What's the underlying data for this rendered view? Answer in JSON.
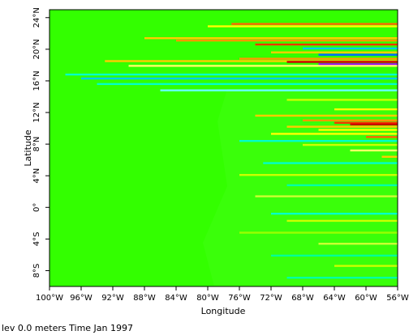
{
  "chart_data": {
    "type": "heatmap",
    "xlabel": "Longitude",
    "ylabel": "Latitude",
    "xlim": [
      -100,
      -56
    ],
    "ylim": [
      -10,
      25
    ],
    "x_ticks": [
      {
        "value": -100,
        "label": "100°W"
      },
      {
        "value": -96,
        "label": "96°W"
      },
      {
        "value": -92,
        "label": "92°W"
      },
      {
        "value": -88,
        "label": "88°W"
      },
      {
        "value": -84,
        "label": "84°W"
      },
      {
        "value": -80,
        "label": "80°W"
      },
      {
        "value": -76,
        "label": "76°W"
      },
      {
        "value": -72,
        "label": "72°W"
      },
      {
        "value": -68,
        "label": "68°W"
      },
      {
        "value": -64,
        "label": "64°W"
      },
      {
        "value": -60,
        "label": "60°W"
      },
      {
        "value": -56,
        "label": "56°W"
      }
    ],
    "y_ticks": [
      {
        "value": -8,
        "label": "8°S"
      },
      {
        "value": -4,
        "label": "4°S"
      },
      {
        "value": 0,
        "label": "0°"
      },
      {
        "value": 4,
        "label": "4°N"
      },
      {
        "value": 8,
        "label": "8°N"
      },
      {
        "value": 12,
        "label": "12°N"
      },
      {
        "value": 16,
        "label": "16°N"
      },
      {
        "value": 20,
        "label": "20°N"
      },
      {
        "value": 24,
        "label": "24°N"
      }
    ],
    "background_color": "#33ff00",
    "streaks": [
      {
        "lat": 23.2,
        "lon_start": -77,
        "color": "#ff6600"
      },
      {
        "lat": 22.9,
        "lon_start": -80,
        "color": "#ffff00"
      },
      {
        "lat": 21.4,
        "lon_start": -88,
        "color": "#ffcc00"
      },
      {
        "lat": 21.1,
        "lon_start": -84,
        "color": "#ff9900"
      },
      {
        "lat": 20.6,
        "lon_start": -74,
        "color": "#ff3300"
      },
      {
        "lat": 20.1,
        "lon_start": -68,
        "color": "#00ccff"
      },
      {
        "lat": 19.6,
        "lon_start": -72,
        "color": "#ffcc00"
      },
      {
        "lat": 19.3,
        "lon_start": -66,
        "color": "#0066ff"
      },
      {
        "lat": 18.8,
        "lon_start": -76,
        "color": "#ff9900"
      },
      {
        "lat": 18.5,
        "lon_start": -93,
        "color": "#ffcc00"
      },
      {
        "lat": 18.4,
        "lon_start": -70,
        "color": "#cc0000"
      },
      {
        "lat": 18.1,
        "lon_start": -66,
        "color": "#9900ff"
      },
      {
        "lat": 17.9,
        "lon_start": -90,
        "color": "#ffff66"
      },
      {
        "lat": 16.8,
        "lon_start": -98,
        "color": "#00ffcc"
      },
      {
        "lat": 16.3,
        "lon_start": -96,
        "color": "#00ccff"
      },
      {
        "lat": 15.6,
        "lon_start": -94,
        "color": "#00ffcc"
      },
      {
        "lat": 14.8,
        "lon_start": -86,
        "color": "#66ffff"
      },
      {
        "lat": 13.6,
        "lon_start": -70,
        "color": "#ccff00"
      },
      {
        "lat": 12.4,
        "lon_start": -64,
        "color": "#ffff00"
      },
      {
        "lat": 11.6,
        "lon_start": -74,
        "color": "#ffcc00"
      },
      {
        "lat": 11.0,
        "lon_start": -68,
        "color": "#ff9900"
      },
      {
        "lat": 10.7,
        "lon_start": -64,
        "color": "#ff3300"
      },
      {
        "lat": 10.5,
        "lon_start": -62,
        "color": "#cc0000"
      },
      {
        "lat": 10.2,
        "lon_start": -70,
        "color": "#ffcc00"
      },
      {
        "lat": 9.8,
        "lon_start": -66,
        "color": "#ffff00"
      },
      {
        "lat": 9.3,
        "lon_start": -72,
        "color": "#ffff00"
      },
      {
        "lat": 8.9,
        "lon_start": -60,
        "color": "#ff6600"
      },
      {
        "lat": 8.4,
        "lon_start": -76,
        "color": "#00ffcc"
      },
      {
        "lat": 7.9,
        "lon_start": -68,
        "color": "#ccff00"
      },
      {
        "lat": 7.2,
        "lon_start": -62,
        "color": "#ffff66"
      },
      {
        "lat": 6.4,
        "lon_start": -58,
        "color": "#ffcc00"
      },
      {
        "lat": 5.6,
        "lon_start": -73,
        "color": "#00ffcc"
      },
      {
        "lat": 4.1,
        "lon_start": -76,
        "color": "#ccff00"
      },
      {
        "lat": 2.8,
        "lon_start": -70,
        "color": "#00ffaa"
      },
      {
        "lat": 1.4,
        "lon_start": -74,
        "color": "#ccff33"
      },
      {
        "lat": -0.8,
        "lon_start": -72,
        "color": "#00ffcc"
      },
      {
        "lat": -1.7,
        "lon_start": -70,
        "color": "#ccff00"
      },
      {
        "lat": -3.2,
        "lon_start": -76,
        "color": "#99ff00"
      },
      {
        "lat": -4.6,
        "lon_start": -66,
        "color": "#ccff33"
      },
      {
        "lat": -6.1,
        "lon_start": -72,
        "color": "#00ff99"
      },
      {
        "lat": -7.4,
        "lon_start": -64,
        "color": "#ccff00"
      },
      {
        "lat": -8.9,
        "lon_start": -70,
        "color": "#00ffaa"
      }
    ]
  },
  "footer": {
    "caption": "lev 0.0 meters Time Jan 1997"
  }
}
